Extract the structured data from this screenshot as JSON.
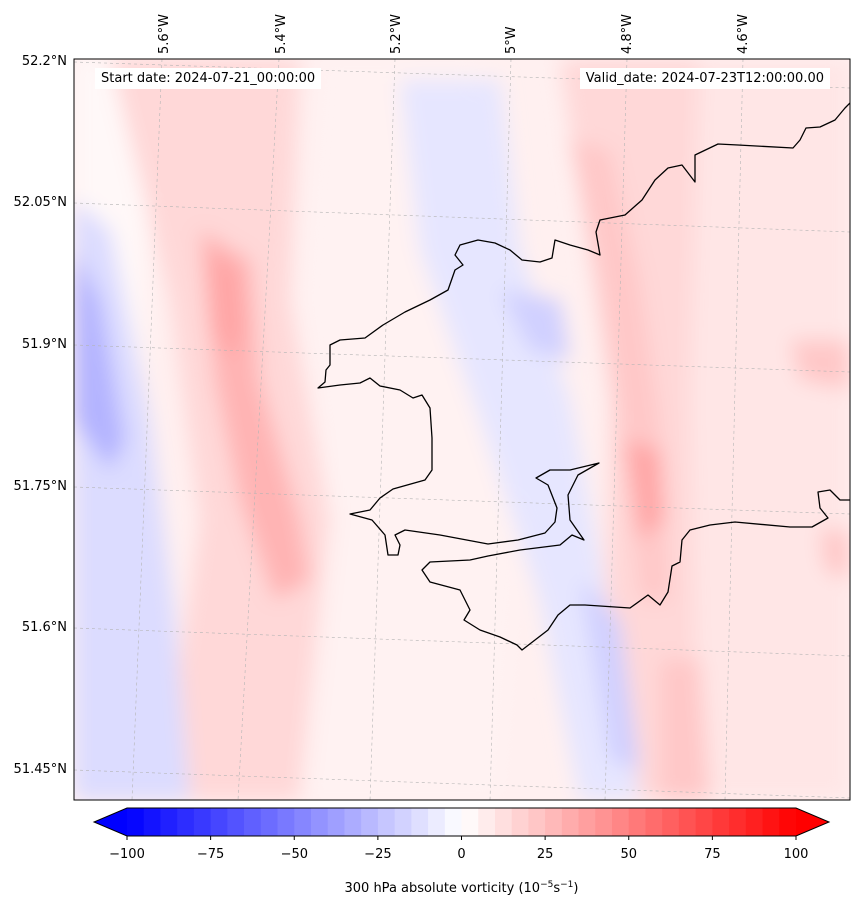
{
  "header": {
    "start_label": "Start date: 2024-07-21_00:00:00",
    "valid_label": "Valid_date: 2024-07-23T12:00:00.00"
  },
  "map": {
    "longitude_labels": [
      "5.6°W",
      "5.4°W",
      "5.2°W",
      "5°W",
      "4.8°W",
      "4.6°W"
    ],
    "latitude_labels": [
      "52.2°N",
      "52.05°N",
      "51.9°N",
      "51.75°N",
      "51.6°N",
      "51.45°N"
    ],
    "field": "300 hPa absolute vorticity",
    "colormap": "bwr"
  },
  "colorbar": {
    "ticks": [
      "−100",
      "−75",
      "−50",
      "−25",
      "0",
      "25",
      "50",
      "75",
      "100"
    ],
    "min": -100,
    "max": 100,
    "levels": 40,
    "extend": "both",
    "label_main": "300 hPa absolute vorticity (10",
    "label_sup1": "−5",
    "label_mid": "s",
    "label_sup2": "−1",
    "label_end": ")",
    "negative_color": "#0000ff",
    "positive_color": "#ff0000"
  }
}
